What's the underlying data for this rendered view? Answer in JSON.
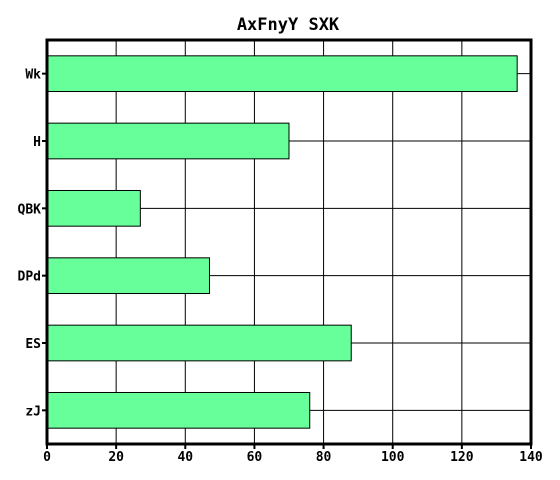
{
  "chart_data": {
    "type": "bar",
    "orientation": "horizontal",
    "title": "AxFnyY SXK",
    "xlabel": "",
    "ylabel": "",
    "categories": [
      "Wk",
      "H",
      "QBK",
      "DPd",
      "ES",
      "zJ"
    ],
    "values": [
      136,
      70,
      27,
      47,
      88,
      76
    ],
    "xlim": [
      0,
      140
    ],
    "xticks": [
      0,
      20,
      40,
      60,
      80,
      100,
      120,
      140
    ],
    "grid": true,
    "bar_color": "#66ff99"
  }
}
